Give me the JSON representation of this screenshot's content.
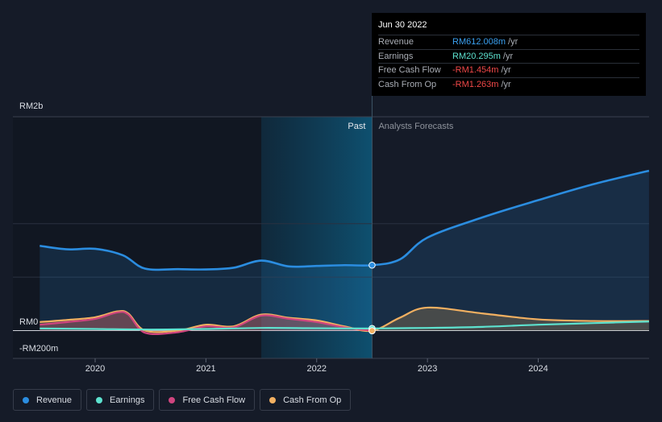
{
  "tooltip": {
    "date": "Jun 30 2022",
    "rows": [
      {
        "label": "Revenue",
        "value": "RM612.008m",
        "unit": "/yr",
        "color": "#3aa0f0"
      },
      {
        "label": "Earnings",
        "value": "RM20.295m",
        "unit": "/yr",
        "color": "#5de2cf"
      },
      {
        "label": "Free Cash Flow",
        "value": "-RM1.454m",
        "unit": "/yr",
        "color": "#f04848"
      },
      {
        "label": "Cash From Op",
        "value": "-RM1.263m",
        "unit": "/yr",
        "color": "#f04848"
      }
    ]
  },
  "legend": [
    {
      "label": "Revenue",
      "color": "#2b8de0"
    },
    {
      "label": "Earnings",
      "color": "#5de2cf"
    },
    {
      "label": "Free Cash Flow",
      "color": "#d0457f"
    },
    {
      "label": "Cash From Op",
      "color": "#f2b061"
    }
  ],
  "chart_data": {
    "type": "line",
    "y_labels": {
      "top": "RM2b",
      "zero": "RM0",
      "bottom": "-RM200m"
    },
    "ylim": [
      -200,
      2000
    ],
    "xlim": [
      2019.5,
      2025.0
    ],
    "x_ticks": [
      2020,
      2021,
      2022,
      2023,
      2024
    ],
    "x_tick_labels": [
      "2020",
      "2021",
      "2022",
      "2023",
      "2024"
    ],
    "past_label": "Past",
    "forecast_label": "Analysts Forecasts",
    "past_end": 2022.5,
    "highlight_start": 2021.5,
    "series": [
      {
        "name": "Revenue",
        "color": "#2b8de0",
        "fill": true,
        "x": [
          2019.5,
          2019.75,
          2020.0,
          2020.25,
          2020.45,
          2020.75,
          2021.0,
          2021.25,
          2021.5,
          2021.75,
          2022.0,
          2022.25,
          2022.5,
          2022.75,
          2023.0,
          2023.5,
          2024.0,
          2024.5,
          2025.0
        ],
        "y": [
          793,
          760,
          765,
          705,
          580,
          575,
          572,
          588,
          655,
          600,
          605,
          612,
          612,
          665,
          870,
          1060,
          1220,
          1370,
          1495
        ]
      },
      {
        "name": "Earnings",
        "color": "#5de2cf",
        "fill": false,
        "x": [
          2019.5,
          2020.0,
          2020.5,
          2021.0,
          2021.5,
          2022.0,
          2022.5,
          2023.0,
          2023.5,
          2024.0,
          2024.5,
          2025.0
        ],
        "y": [
          20,
          15,
          10,
          15,
          25,
          22,
          20,
          25,
          35,
          55,
          70,
          85
        ]
      },
      {
        "name": "Free Cash Flow",
        "color": "#d0457f",
        "fill": true,
        "x": [
          2019.5,
          2019.75,
          2020.0,
          2020.2,
          2020.3,
          2020.45,
          2020.75,
          2021.0,
          2021.25,
          2021.5,
          2021.75,
          2022.0,
          2022.25,
          2022.5
        ],
        "y": [
          55,
          80,
          110,
          170,
          150,
          -20,
          -15,
          40,
          30,
          140,
          110,
          80,
          30,
          -1.5
        ]
      },
      {
        "name": "Cash From Op",
        "color": "#f2b061",
        "fill": true,
        "x": [
          2019.5,
          2019.75,
          2020.0,
          2020.2,
          2020.3,
          2020.45,
          2020.75,
          2021.0,
          2021.25,
          2021.5,
          2021.75,
          2022.0,
          2022.25,
          2022.5,
          2022.75,
          2023.0,
          2023.5,
          2024.0,
          2024.5,
          2025.0
        ],
        "y": [
          80,
          100,
          125,
          180,
          160,
          0,
          0,
          55,
          40,
          150,
          120,
          95,
          40,
          -1.3,
          120,
          215,
          160,
          105,
          90,
          90
        ]
      }
    ]
  }
}
